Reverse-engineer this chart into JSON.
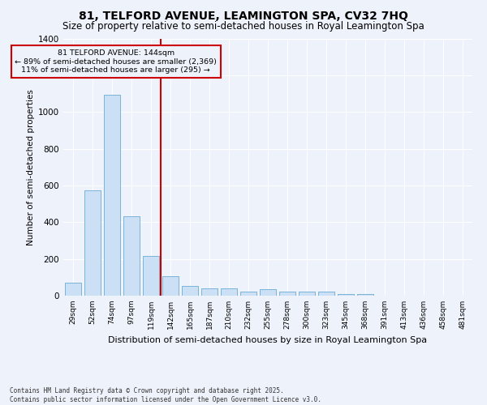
{
  "title1": "81, TELFORD AVENUE, LEAMINGTON SPA, CV32 7HQ",
  "title2": "Size of property relative to semi-detached houses in Royal Leamington Spa",
  "xlabel": "Distribution of semi-detached houses by size in Royal Leamington Spa",
  "ylabel": "Number of semi-detached properties",
  "categories": [
    "29sqm",
    "52sqm",
    "74sqm",
    "97sqm",
    "119sqm",
    "142sqm",
    "165sqm",
    "187sqm",
    "210sqm",
    "232sqm",
    "255sqm",
    "278sqm",
    "300sqm",
    "323sqm",
    "345sqm",
    "368sqm",
    "391sqm",
    "413sqm",
    "436sqm",
    "458sqm",
    "481sqm"
  ],
  "values": [
    70,
    575,
    1095,
    430,
    215,
    105,
    55,
    40,
    40,
    20,
    35,
    20,
    20,
    20,
    10,
    10,
    0,
    0,
    0,
    0,
    0
  ],
  "bar_color": "#cce0f5",
  "bar_edge_color": "#7ab3d9",
  "vline_color": "#cc0000",
  "annotation_title": "81 TELFORD AVENUE: 144sqm",
  "annotation_line1": "← 89% of semi-detached houses are smaller (2,369)",
  "annotation_line2": "11% of semi-detached houses are larger (295) →",
  "annotation_box_color": "#cc0000",
  "ylim": [
    0,
    1400
  ],
  "yticks": [
    0,
    200,
    400,
    600,
    800,
    1000,
    1200,
    1400
  ],
  "footnote1": "Contains HM Land Registry data © Crown copyright and database right 2025.",
  "footnote2": "Contains public sector information licensed under the Open Government Licence v3.0.",
  "bg_color": "#eef2fb",
  "grid_color": "#ffffff",
  "title1_fontsize": 10,
  "title2_fontsize": 8.5
}
